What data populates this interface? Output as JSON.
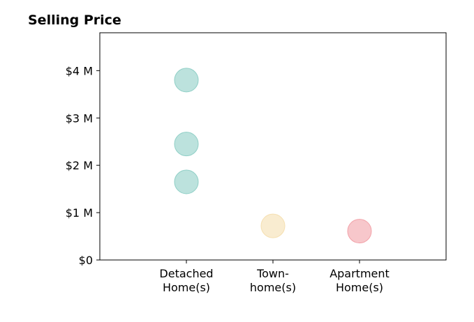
{
  "chart_data": {
    "type": "scatter",
    "title": "Selling Price",
    "xlabel": "",
    "ylabel": "",
    "categories": [
      "Detached\nHome(s)",
      "Town-\nhome(s)",
      "Apartment\nHome(s)"
    ],
    "ylim": [
      0,
      4800000
    ],
    "yticks": [
      {
        "value": 0,
        "label": "$0"
      },
      {
        "value": 1000000,
        "label": "$1 M"
      },
      {
        "value": 2000000,
        "label": "$2 M"
      },
      {
        "value": 3000000,
        "label": "$3 M"
      },
      {
        "value": 4000000,
        "label": "$4 M"
      }
    ],
    "series": [
      {
        "category_index": 0,
        "values": [
          3800000,
          2450000,
          1650000
        ],
        "color": "#8fcfc6"
      },
      {
        "category_index": 1,
        "values": [
          720000
        ],
        "color": "#f5dfb0"
      },
      {
        "category_index": 2,
        "values": [
          610000
        ],
        "color": "#f2a1a8"
      }
    ],
    "grid": false,
    "legend": "none"
  }
}
